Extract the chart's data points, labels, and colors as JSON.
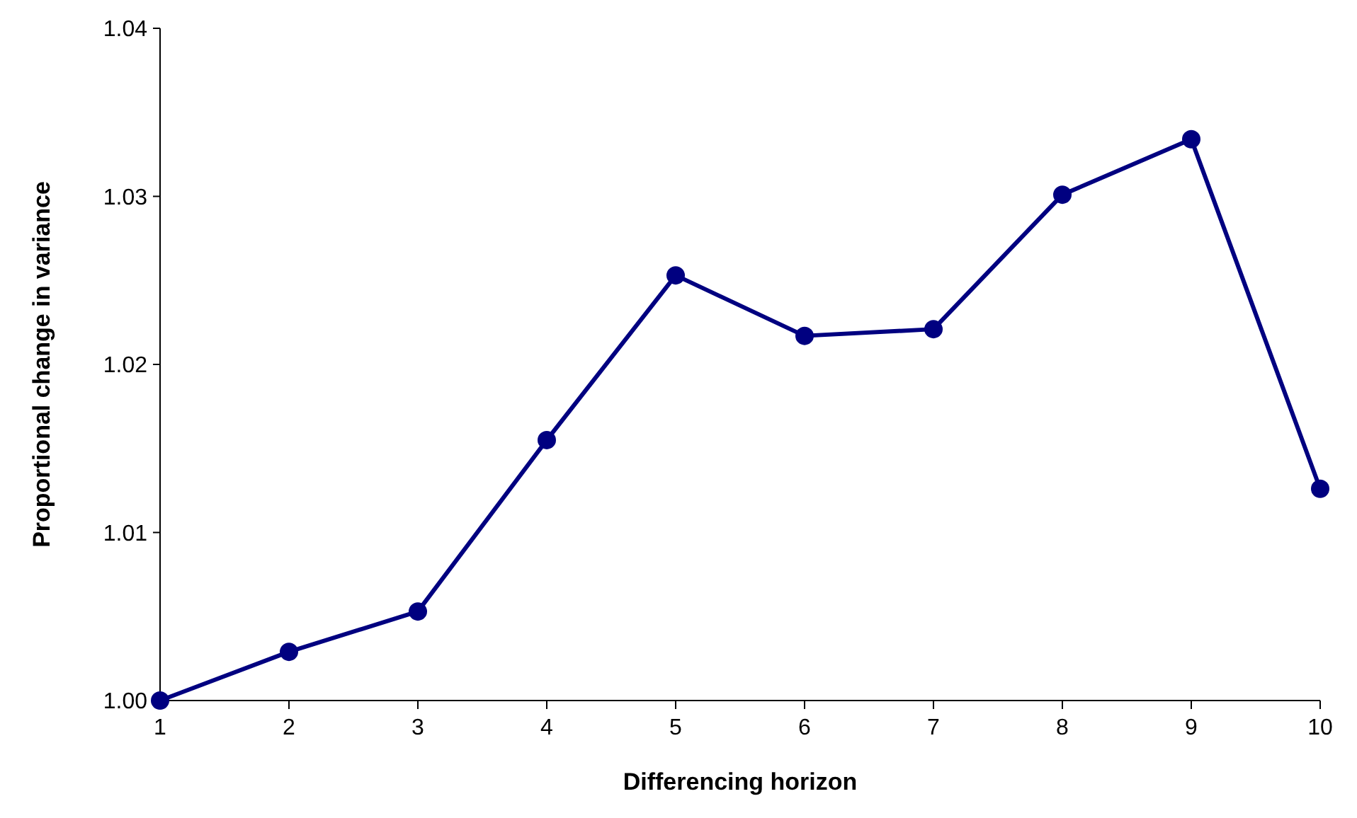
{
  "chart_data": {
    "type": "line",
    "xlabel": "Differencing horizon",
    "ylabel": "Proportional change in variance",
    "x": [
      1,
      2,
      3,
      4,
      5,
      6,
      7,
      8,
      9,
      10
    ],
    "series": [
      {
        "color": "#000080",
        "values": [
          1.0,
          1.0029,
          1.0053,
          1.0155,
          1.0253,
          1.0217,
          1.0221,
          1.0301,
          1.0334,
          1.0126
        ]
      }
    ],
    "xlim": [
      1,
      10
    ],
    "xticks": [
      1,
      2,
      3,
      4,
      5,
      6,
      7,
      8,
      9,
      10
    ],
    "ylim": [
      1.0,
      1.04
    ],
    "yticks": [
      {
        "value": 1.0,
        "label": "1.00"
      },
      {
        "value": 1.01,
        "label": "1.01"
      },
      {
        "value": 1.02,
        "label": "1.02"
      },
      {
        "value": 1.03,
        "label": "1.03"
      },
      {
        "value": 1.04,
        "label": "1.04"
      }
    ],
    "marker": "circle",
    "line_style": "solid"
  }
}
